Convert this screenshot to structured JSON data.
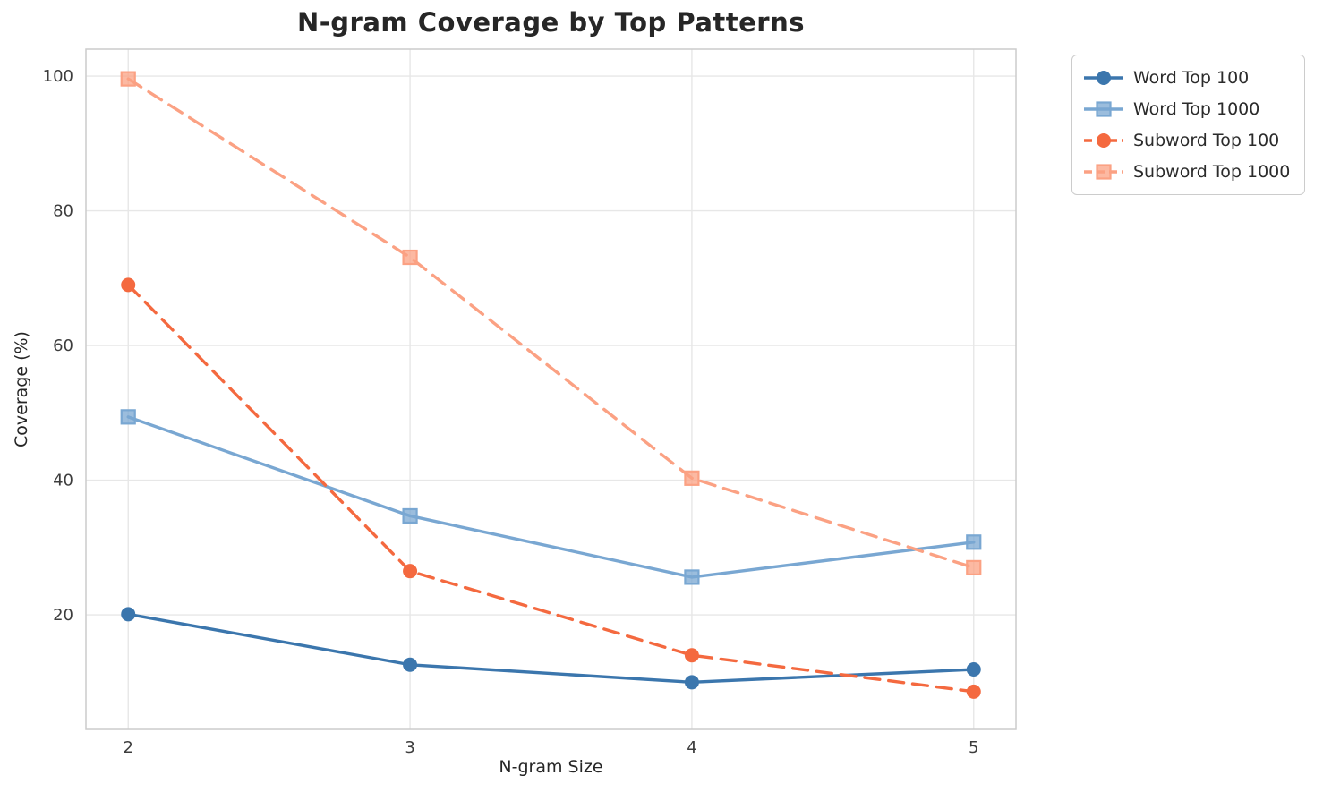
{
  "figure": {
    "title": "N-gram Coverage by Top Patterns",
    "xlabel": "N-gram Size",
    "ylabel": "Coverage (%)"
  },
  "chart_data": {
    "type": "line",
    "title": "N-gram Coverage by Top Patterns",
    "xlabel": "N-gram Size",
    "ylabel": "Coverage (%)",
    "x": [
      2,
      3,
      4,
      5
    ],
    "series": [
      {
        "name": "Word Top 100",
        "values": [
          20.1,
          12.6,
          10.0,
          11.9
        ],
        "color": "#3b76ad",
        "linestyle": "solid",
        "marker": "circle"
      },
      {
        "name": "Word Top 1000",
        "values": [
          49.4,
          34.7,
          25.6,
          30.8
        ],
        "color": "#79a7d2",
        "linestyle": "solid",
        "marker": "square"
      },
      {
        "name": "Subword Top 100",
        "values": [
          69.0,
          26.5,
          14.0,
          8.6
        ],
        "color": "#f4693f",
        "linestyle": "dashed",
        "marker": "circle"
      },
      {
        "name": "Subword Top 1000",
        "values": [
          99.6,
          73.1,
          40.3,
          27.0
        ],
        "color": "#fba183",
        "linestyle": "dashed",
        "marker": "square"
      }
    ],
    "xticks": [
      2,
      3,
      4,
      5
    ],
    "yticks": [
      20,
      40,
      60,
      80,
      100
    ],
    "xlim": [
      1.85,
      5.15
    ],
    "ylim": [
      3.0,
      104.0
    ],
    "grid": true,
    "legend_position": "outside-top-right"
  },
  "style": {
    "background": "#ffffff",
    "grid_color": "#e7e7e7",
    "spine_color": "#cccccc",
    "tick_color": "#3d3d3d",
    "title_color": "#262626"
  }
}
